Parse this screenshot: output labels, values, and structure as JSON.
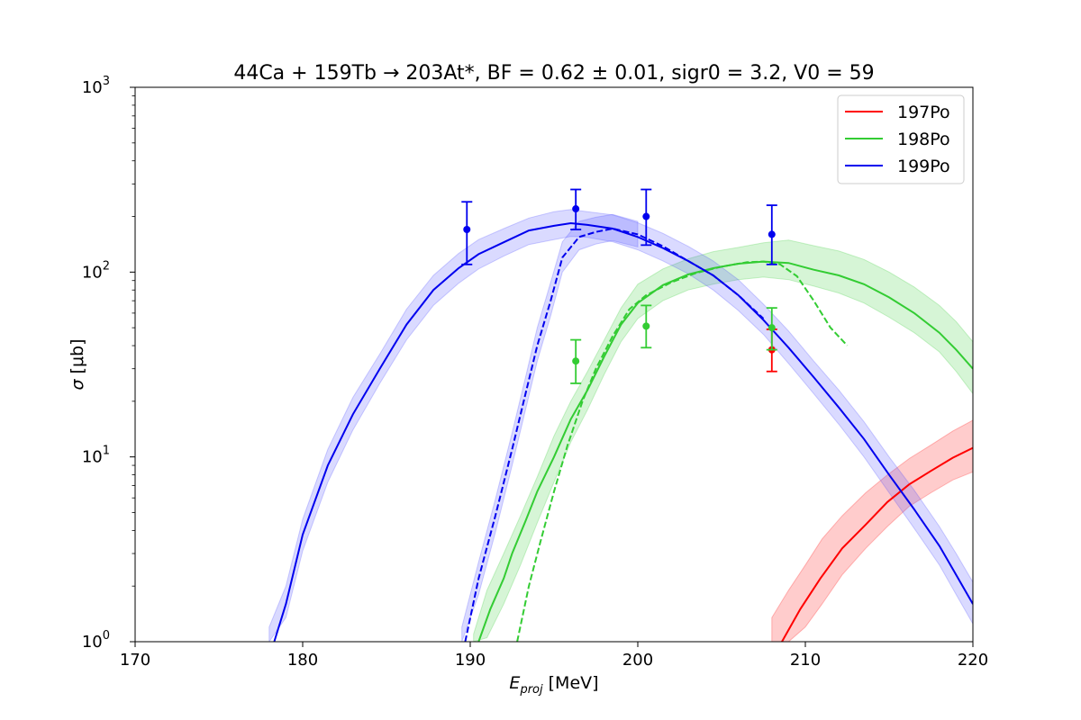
{
  "chart_data": {
    "type": "line",
    "title": "44Ca + 159Tb → 203At*, BF = 0.62 ± 0.01, sigr0 = 3.2, V0 = 59",
    "xlabel_main": "E",
    "xlabel_sub": "proj",
    "xlabel_unit": " [MeV]",
    "ylabel_sym": "σ",
    "ylabel_unit": " [μb]",
    "xlim": [
      170,
      220
    ],
    "ylim": [
      1,
      1000
    ],
    "yscale": "log",
    "grid": false,
    "legend_position": "top-right",
    "x_ticks": [
      {
        "value": 170,
        "label": "170"
      },
      {
        "value": 180,
        "label": "180"
      },
      {
        "value": 190,
        "label": "190"
      },
      {
        "value": 200,
        "label": "200"
      },
      {
        "value": 210,
        "label": "210"
      },
      {
        "value": 220,
        "label": "220"
      }
    ],
    "y_ticks": [
      {
        "value": 1,
        "base": "10",
        "exp": "0"
      },
      {
        "value": 10,
        "base": "10",
        "exp": "1"
      },
      {
        "value": 100,
        "base": "10",
        "exp": "2"
      },
      {
        "value": 1000,
        "base": "10",
        "exp": "3"
      }
    ],
    "series": [
      {
        "name": "197Po",
        "color": "#ff0000",
        "band_color": "#ff0000",
        "curve": [
          [
            208.6,
            1.0
          ],
          [
            209.7,
            1.5
          ],
          [
            210.9,
            2.2
          ],
          [
            212.2,
            3.2
          ],
          [
            213.6,
            4.3
          ],
          [
            214.9,
            5.7
          ],
          [
            216.2,
            7.1
          ],
          [
            217.5,
            8.4
          ],
          [
            218.8,
            9.9
          ],
          [
            220,
            11.2
          ]
        ],
        "band": [
          [
            208.0,
            1.0,
            1.35
          ],
          [
            209.0,
            1.0,
            1.9
          ],
          [
            210.0,
            1.2,
            2.6
          ],
          [
            211.0,
            1.6,
            3.6
          ],
          [
            212.2,
            2.3,
            4.8
          ],
          [
            213.6,
            3.2,
            6.4
          ],
          [
            214.9,
            4.2,
            8.0
          ],
          [
            216.2,
            5.4,
            9.8
          ],
          [
            217.5,
            6.4,
            11.6
          ],
          [
            218.8,
            7.5,
            13.8
          ],
          [
            220,
            8.3,
            15.8
          ]
        ],
        "points": [
          {
            "x": 208.0,
            "y": 38,
            "err_lo": 29,
            "err_hi": 49
          }
        ]
      },
      {
        "name": "198Po",
        "color": "#33cc33",
        "band_color": "#33cc33",
        "curve": [
          [
            190.5,
            1.0
          ],
          [
            191.2,
            1.5
          ],
          [
            192.0,
            2.2
          ],
          [
            192.5,
            3.0
          ],
          [
            193.3,
            4.5
          ],
          [
            194.0,
            6.5
          ],
          [
            195.0,
            10
          ],
          [
            196.0,
            16
          ],
          [
            197.0,
            23
          ],
          [
            198.0,
            35
          ],
          [
            199.0,
            52
          ],
          [
            200.0,
            68
          ],
          [
            201.5,
            85
          ],
          [
            203.0,
            97
          ],
          [
            204.5,
            105
          ],
          [
            206.0,
            111
          ],
          [
            207.5,
            114
          ],
          [
            209.0,
            112
          ],
          [
            210.5,
            103
          ],
          [
            212.0,
            96
          ],
          [
            213.5,
            86
          ],
          [
            215.0,
            73
          ],
          [
            216.5,
            60
          ],
          [
            218.0,
            47
          ],
          [
            219.0,
            38
          ],
          [
            220,
            30
          ]
        ],
        "dashed_curve": [
          [
            192.8,
            1.0
          ],
          [
            193.5,
            2.0
          ],
          [
            194.2,
            3.5
          ],
          [
            195.0,
            6.5
          ],
          [
            195.8,
            11.5
          ],
          [
            196.7,
            20
          ],
          [
            197.5,
            30
          ],
          [
            198.5,
            45
          ],
          [
            199.5,
            63
          ],
          [
            200.5,
            75
          ],
          [
            202.0,
            88
          ],
          [
            203.5,
            99
          ],
          [
            205.0,
            107
          ],
          [
            206.5,
            113
          ],
          [
            207.5,
            114
          ],
          [
            208.5,
            110
          ],
          [
            209.5,
            95
          ],
          [
            210.5,
            70
          ],
          [
            211.5,
            50
          ],
          [
            212.5,
            40
          ]
        ],
        "band": [
          [
            190.2,
            1.0,
            1.1
          ],
          [
            191.0,
            1.05,
            1.9
          ],
          [
            192.0,
            1.6,
            3.0
          ],
          [
            193.0,
            2.6,
            4.8
          ],
          [
            194.0,
            4.4,
            7.8
          ],
          [
            195.0,
            7.3,
            13
          ],
          [
            196.0,
            12,
            20
          ],
          [
            197.0,
            18,
            29
          ],
          [
            198.0,
            28,
            43
          ],
          [
            199.0,
            42,
            64
          ],
          [
            200.0,
            56,
            86
          ],
          [
            201.5,
            70,
            104
          ],
          [
            203.0,
            80,
            118
          ],
          [
            204.5,
            86,
            129
          ],
          [
            206.0,
            91,
            136
          ],
          [
            207.5,
            94,
            144
          ],
          [
            209.0,
            91,
            149
          ],
          [
            210.5,
            84,
            139
          ],
          [
            212.0,
            77,
            130
          ],
          [
            213.5,
            68,
            117
          ],
          [
            215.0,
            57,
            100
          ],
          [
            216.5,
            47,
            83
          ],
          [
            218.0,
            37,
            66
          ],
          [
            219.0,
            29,
            54
          ],
          [
            220,
            22,
            42
          ]
        ],
        "points": [
          {
            "x": 196.3,
            "y": 33,
            "err_lo": 25,
            "err_hi": 43
          },
          {
            "x": 200.5,
            "y": 51,
            "err_lo": 39,
            "err_hi": 66
          },
          {
            "x": 208.0,
            "y": 50,
            "err_lo": 38,
            "err_hi": 64
          }
        ]
      },
      {
        "name": "199Po",
        "color": "#0000ee",
        "band_color": "#4444ff",
        "curve": [
          [
            178.3,
            1.0
          ],
          [
            179.0,
            1.6
          ],
          [
            180.0,
            3.8
          ],
          [
            181.5,
            9
          ],
          [
            183.0,
            17
          ],
          [
            184.6,
            30
          ],
          [
            186.2,
            52
          ],
          [
            187.8,
            80
          ],
          [
            189.3,
            105
          ],
          [
            190.5,
            125
          ],
          [
            192.0,
            145
          ],
          [
            193.5,
            168
          ],
          [
            195.0,
            178
          ],
          [
            196.0,
            184
          ],
          [
            197.0,
            180
          ],
          [
            198.5,
            172
          ],
          [
            200.0,
            155
          ],
          [
            201.5,
            135
          ],
          [
            203.0,
            115
          ],
          [
            204.5,
            96
          ],
          [
            206.0,
            75
          ],
          [
            207.5,
            55
          ],
          [
            209.0,
            39
          ],
          [
            210.5,
            27
          ],
          [
            212.0,
            18.5
          ],
          [
            213.5,
            12.5
          ],
          [
            215.0,
            8.0
          ],
          [
            216.5,
            5.2
          ],
          [
            218.0,
            3.3
          ],
          [
            219.0,
            2.3
          ],
          [
            220,
            1.6
          ]
        ],
        "dashed_curve": [
          [
            189.7,
            1.0
          ],
          [
            190.5,
            2.2
          ],
          [
            191.5,
            4.8
          ],
          [
            192.5,
            11
          ],
          [
            193.3,
            22
          ],
          [
            194.0,
            40
          ],
          [
            194.8,
            70
          ],
          [
            195.5,
            120
          ],
          [
            196.5,
            155
          ],
          [
            197.5,
            165
          ],
          [
            198.5,
            172
          ],
          [
            200.0,
            160
          ],
          [
            201.5,
            138
          ],
          [
            203.0,
            115
          ],
          [
            204.5,
            96
          ],
          [
            206.0,
            75
          ],
          [
            207.5,
            56
          ]
        ],
        "band": [
          [
            178.0,
            1.0,
            1.2
          ],
          [
            179.0,
            1.35,
            2.0
          ],
          [
            180.0,
            3.1,
            4.6
          ],
          [
            181.5,
            7.3,
            11
          ],
          [
            183.0,
            14,
            21
          ],
          [
            184.6,
            25,
            36
          ],
          [
            186.2,
            43,
            63
          ],
          [
            187.8,
            66,
            96
          ],
          [
            189.3,
            87,
            126
          ],
          [
            190.5,
            104,
            150
          ],
          [
            192.0,
            122,
            172
          ],
          [
            193.5,
            141,
            196
          ],
          [
            195.0,
            150,
            212
          ],
          [
            196.0,
            156,
            218
          ],
          [
            197.0,
            154,
            212
          ],
          [
            198.5,
            146,
            204
          ],
          [
            200.0,
            132,
            185
          ],
          [
            201.5,
            115,
            162
          ],
          [
            203.0,
            98,
            138
          ],
          [
            204.5,
            80,
            115
          ],
          [
            206.0,
            62,
            91
          ],
          [
            207.5,
            46,
            67
          ],
          [
            209.0,
            32,
            48
          ],
          [
            210.5,
            22,
            33
          ],
          [
            212.0,
            15,
            23
          ],
          [
            213.5,
            10,
            15.5
          ],
          [
            215.0,
            6.4,
            10
          ],
          [
            216.5,
            4.1,
            6.6
          ],
          [
            218.0,
            2.6,
            4.2
          ],
          [
            219.0,
            1.8,
            3.0
          ],
          [
            220,
            1.25,
            2.1
          ]
        ],
        "dashed_band": [
          [
            189.5,
            1.0,
            1.2
          ],
          [
            190.5,
            1.8,
            2.7
          ],
          [
            191.5,
            3.9,
            5.9
          ],
          [
            192.5,
            9,
            13.5
          ],
          [
            193.3,
            18,
            27
          ],
          [
            194.0,
            33,
            50
          ],
          [
            194.8,
            58,
            88
          ],
          [
            195.5,
            100,
            146
          ],
          [
            196.5,
            132,
            188
          ],
          [
            197.5,
            142,
            198
          ],
          [
            198.5,
            148,
            205
          ],
          [
            200.0,
            137,
            188
          ]
        ],
        "points": [
          {
            "x": 189.8,
            "y": 170,
            "err_lo": 110,
            "err_hi": 240
          },
          {
            "x": 196.3,
            "y": 220,
            "err_lo": 170,
            "err_hi": 280
          },
          {
            "x": 200.5,
            "y": 200,
            "err_lo": 140,
            "err_hi": 280
          },
          {
            "x": 208.0,
            "y": 160,
            "err_lo": 110,
            "err_hi": 230
          }
        ]
      }
    ]
  }
}
